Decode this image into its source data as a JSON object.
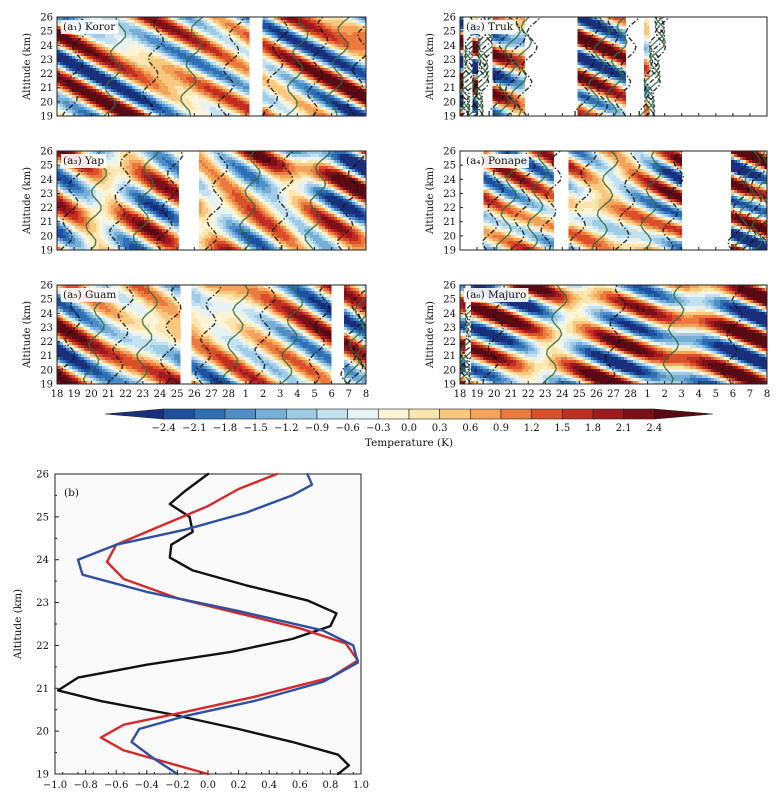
{
  "chart_data": [
    {
      "type": "heatmap",
      "id": "a1",
      "panel_label": "(a₁) Koror",
      "ylabel": "Altitude (km)",
      "ylim": [
        19,
        26
      ],
      "yticks": [
        19,
        20,
        21,
        22,
        23,
        24,
        25,
        26
      ],
      "data_coverage": [
        [
          0,
          10.6
        ],
        [
          11.3,
          17.0
        ]
      ],
      "seed": 11
    },
    {
      "type": "heatmap",
      "id": "a2",
      "panel_label": "(a₂) Truk",
      "ylabel": "Altitude (km)",
      "ylim": [
        19,
        26
      ],
      "yticks": [
        19,
        20,
        21,
        22,
        23,
        24,
        25,
        26
      ],
      "data_coverage": [
        [
          0,
          0.2
        ],
        [
          0.7,
          1.0
        ],
        [
          1.8,
          3.6
        ],
        [
          6.5,
          9.2
        ],
        [
          10.2,
          10.5
        ]
      ],
      "seed": 23
    },
    {
      "type": "heatmap",
      "id": "a3",
      "panel_label": "(a₃) Yap",
      "ylabel": "Altitude (km)",
      "ylim": [
        19,
        26
      ],
      "yticks": [
        19,
        20,
        21,
        22,
        23,
        24,
        25,
        26
      ],
      "data_coverage": [
        [
          0,
          6.7
        ],
        [
          7.8,
          17.0
        ]
      ],
      "seed": 37
    },
    {
      "type": "heatmap",
      "id": "a4",
      "panel_label": "(a₄) Ponape",
      "ylabel": "Altitude (km)",
      "ylim": [
        19,
        26
      ],
      "yticks": [
        19,
        20,
        21,
        22,
        23,
        24,
        25,
        26
      ],
      "data_coverage": [
        [
          1.3,
          5.2
        ],
        [
          6.0,
          12.3
        ],
        [
          15.0,
          17.0
        ]
      ],
      "seed": 41
    },
    {
      "type": "heatmap",
      "id": "a5",
      "panel_label": "(a₅) Guam",
      "ylabel": "Altitude (km)",
      "ylim": [
        19,
        26
      ],
      "yticks": [
        19,
        20,
        21,
        22,
        23,
        24,
        25,
        26
      ],
      "xtick_labels": [
        "18",
        "19",
        "20",
        "21",
        "22",
        "23",
        "24",
        "25",
        "26",
        "27",
        "28",
        "1",
        "2",
        "3",
        "4",
        "5",
        "6",
        "7",
        "8"
      ],
      "data_coverage": [
        [
          0,
          6.8
        ],
        [
          7.4,
          15.1
        ],
        [
          15.8,
          17.0
        ]
      ],
      "seed": 53
    },
    {
      "type": "heatmap",
      "id": "a6",
      "panel_label": "(a₆) Majuro",
      "ylabel": "Altitude (km)",
      "ylim": [
        19,
        26
      ],
      "yticks": [
        19,
        20,
        21,
        22,
        23,
        24,
        25,
        26
      ],
      "xtick_labels": [
        "18",
        "19",
        "20",
        "21",
        "22",
        "23",
        "24",
        "25",
        "26",
        "27",
        "28",
        "1",
        "2",
        "3",
        "4",
        "5",
        "6",
        "7",
        "8"
      ],
      "data_coverage": [
        [
          0,
          0.3
        ],
        [
          0.6,
          17.0
        ]
      ],
      "seed": 67
    },
    {
      "type": "colorbar",
      "id": "colorbar",
      "label": "Temperature (K)",
      "tick_labels": [
        "−2.4",
        "−2.1",
        "−1.8",
        "−1.5",
        "−1.2",
        "−0.9",
        "−0.6",
        "−0.3",
        "0.0",
        "0.3",
        "0.6",
        "0.9",
        "1.2",
        "1.5",
        "1.8",
        "2.1",
        "2.4"
      ],
      "colors": [
        "#1a2f7c",
        "#1e4f9e",
        "#2f6fb6",
        "#4f8fc8",
        "#76aed8",
        "#9ecbe5",
        "#c4e1ef",
        "#e6f2f4",
        "#fbf4d6",
        "#fce5ae",
        "#f9c880",
        "#f4a45a",
        "#ea7a3e",
        "#d9502b",
        "#c22d23",
        "#9f1a1f",
        "#7a1018",
        "#5a0a12"
      ]
    },
    {
      "type": "line",
      "id": "b",
      "panel_label": "(b)",
      "ylabel": "Altitude (km)",
      "xlabel": "",
      "xlim": [
        -1.0,
        1.0
      ],
      "ylim": [
        19,
        26
      ],
      "xtick_labels": [
        "−1.0",
        "−0.8",
        "−0.6",
        "−0.4",
        "−0.2",
        "0.0",
        "0.2",
        "0.4",
        "0.6",
        "0.8",
        "1.0"
      ],
      "ytick_labels": [
        "19",
        "20",
        "21",
        "22",
        "23",
        "24",
        "25",
        "26"
      ],
      "series": [
        {
          "name": "black",
          "color": "#111111",
          "points": [
            [
              0.85,
              19.0
            ],
            [
              0.92,
              19.2
            ],
            [
              0.85,
              19.45
            ],
            [
              0.55,
              19.75
            ],
            [
              0.2,
              20.05
            ],
            [
              -0.25,
              20.4
            ],
            [
              -0.7,
              20.7
            ],
            [
              -0.98,
              20.95
            ],
            [
              -0.85,
              21.25
            ],
            [
              -0.4,
              21.55
            ],
            [
              0.15,
              21.85
            ],
            [
              0.55,
              22.15
            ],
            [
              0.8,
              22.45
            ],
            [
              0.84,
              22.75
            ],
            [
              0.65,
              23.05
            ],
            [
              0.25,
              23.4
            ],
            [
              -0.1,
              23.75
            ],
            [
              -0.25,
              24.05
            ],
            [
              -0.24,
              24.35
            ],
            [
              -0.1,
              24.65
            ],
            [
              -0.12,
              25.0
            ],
            [
              -0.25,
              25.3
            ],
            [
              -0.15,
              25.6
            ],
            [
              0.0,
              26.0
            ]
          ]
        },
        {
          "name": "red",
          "color": "#d42a2a",
          "points": [
            [
              0.0,
              19.0
            ],
            [
              -0.25,
              19.25
            ],
            [
              -0.55,
              19.55
            ],
            [
              -0.7,
              19.85
            ],
            [
              -0.55,
              20.15
            ],
            [
              -0.15,
              20.45
            ],
            [
              0.3,
              20.8
            ],
            [
              0.8,
              21.25
            ],
            [
              0.98,
              21.65
            ],
            [
              0.9,
              22.05
            ],
            [
              0.6,
              22.4
            ],
            [
              0.2,
              22.75
            ],
            [
              -0.2,
              23.1
            ],
            [
              -0.55,
              23.55
            ],
            [
              -0.66,
              23.95
            ],
            [
              -0.6,
              24.35
            ],
            [
              -0.3,
              24.8
            ],
            [
              0.0,
              25.25
            ],
            [
              0.2,
              25.65
            ],
            [
              0.45,
              26.0
            ]
          ]
        },
        {
          "name": "blue",
          "color": "#2f4fa0",
          "points": [
            [
              -0.2,
              19.0
            ],
            [
              -0.35,
              19.35
            ],
            [
              -0.5,
              19.75
            ],
            [
              -0.45,
              20.05
            ],
            [
              -0.15,
              20.35
            ],
            [
              0.3,
              20.7
            ],
            [
              0.75,
              21.15
            ],
            [
              0.98,
              21.6
            ],
            [
              0.95,
              22.0
            ],
            [
              0.75,
              22.35
            ],
            [
              0.2,
              22.8
            ],
            [
              -0.4,
              23.25
            ],
            [
              -0.82,
              23.65
            ],
            [
              -0.85,
              24.0
            ],
            [
              -0.6,
              24.35
            ],
            [
              -0.15,
              24.7
            ],
            [
              0.25,
              25.1
            ],
            [
              0.55,
              25.5
            ],
            [
              0.68,
              25.75
            ],
            [
              0.65,
              26.0
            ]
          ]
        }
      ]
    }
  ]
}
